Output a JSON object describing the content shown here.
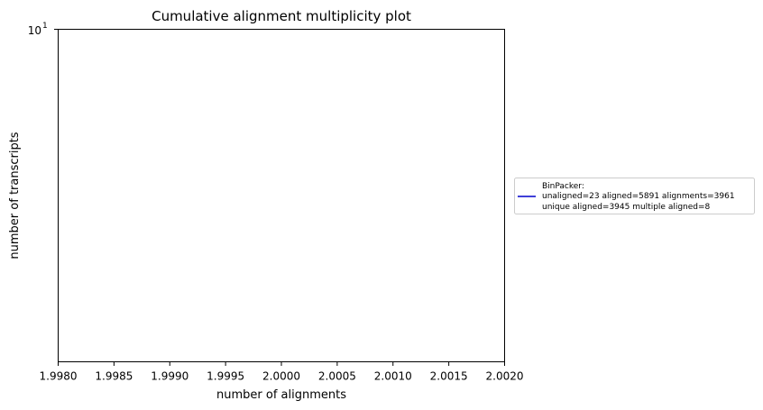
{
  "chart_data": {
    "type": "line",
    "title": "Cumulative alignment multiplicity plot",
    "xlabel": "number of alignments",
    "ylabel": "number of transcripts",
    "xlim": [
      1.998,
      2.002
    ],
    "x_ticks": [
      "1.9980",
      "1.9985",
      "1.9990",
      "1.9995",
      "2.0000",
      "2.0005",
      "2.0010",
      "2.0015",
      "2.0020"
    ],
    "y_scale": "log",
    "y_tick_label": {
      "base": "10",
      "exponent": "1"
    },
    "grid": false,
    "legend_placement": "right, outside plot",
    "series": [
      {
        "legend_lines": [
          "BinPacker:",
          "unaligned=23 aligned=5891 alignments=3961",
          "unique aligned=3945 multiple aligned=8"
        ],
        "color": "#0000cc",
        "points": []
      }
    ]
  }
}
